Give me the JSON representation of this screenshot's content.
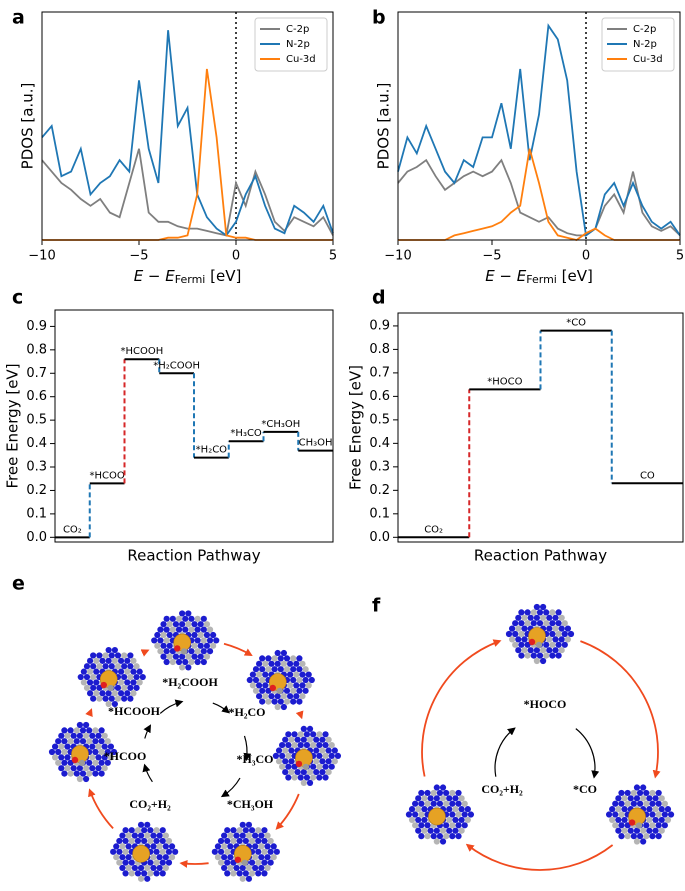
{
  "chart_data": [
    {
      "type": "line",
      "panel": "a",
      "ylabel": "PDOS [a.u.]",
      "xlabel": {
        "main": "E − E",
        "sub": "Fermi",
        "unit": " [eV]"
      },
      "x": [
        -10,
        -9.5,
        -9,
        -8.5,
        -8,
        -7.5,
        -7,
        -6.5,
        -6,
        -5.5,
        -5,
        -4.5,
        -4,
        -3.5,
        -3,
        -2.5,
        -2,
        -1.5,
        -1,
        -0.5,
        0,
        0.5,
        1,
        1.5,
        2,
        2.5,
        3,
        3.5,
        4,
        4.5,
        5
      ],
      "series": [
        {
          "name": "C-2p",
          "color": "#7f7f7f",
          "values": [
            35,
            30,
            25,
            22,
            18,
            15,
            18,
            12,
            10,
            25,
            40,
            12,
            8,
            8,
            6,
            5,
            5,
            4,
            3,
            2,
            25,
            15,
            30,
            20,
            8,
            4,
            10,
            8,
            6,
            10,
            2
          ]
        },
        {
          "name": "N-2p",
          "color": "#1f77b4",
          "values": [
            45,
            50,
            28,
            30,
            40,
            20,
            25,
            28,
            35,
            30,
            70,
            40,
            25,
            92,
            50,
            58,
            20,
            10,
            5,
            2,
            8,
            20,
            28,
            15,
            5,
            3,
            15,
            12,
            8,
            15,
            3
          ]
        },
        {
          "name": "Cu-3d",
          "color": "#ff7f0e",
          "values": [
            0,
            0,
            0,
            0,
            0,
            0,
            0,
            0,
            0,
            0,
            0,
            0,
            0,
            1,
            1,
            2,
            20,
            75,
            45,
            2,
            1,
            1,
            0,
            0,
            0,
            0,
            0,
            0,
            0,
            0,
            0
          ]
        }
      ],
      "xlim": [
        -10,
        5
      ],
      "ylim": [
        0,
        100
      ],
      "xticks": [
        {
          "value": -10,
          "label": "−10"
        },
        {
          "value": -5,
          "label": "−5"
        },
        0,
        5
      ],
      "vline": 0,
      "grid": false,
      "legend": "upper right"
    },
    {
      "type": "line",
      "panel": "b",
      "ylabel": "PDOS [a.u.]",
      "xlabel": {
        "main": "E − E",
        "sub": "Fermi",
        "unit": " [eV]"
      },
      "x": [
        -10,
        -9.5,
        -9,
        -8.5,
        -8,
        -7.5,
        -7,
        -6.5,
        -6,
        -5.5,
        -5,
        -4.5,
        -4,
        -3.5,
        -3,
        -2.5,
        -2,
        -1.5,
        -1,
        -0.5,
        0,
        0.5,
        1,
        1.5,
        2,
        2.5,
        3,
        3.5,
        4,
        4.5,
        5
      ],
      "series": [
        {
          "name": "C-2p",
          "color": "#7f7f7f",
          "values": [
            25,
            30,
            32,
            35,
            28,
            22,
            25,
            28,
            30,
            28,
            30,
            35,
            25,
            12,
            10,
            8,
            10,
            5,
            3,
            2,
            2,
            5,
            15,
            20,
            12,
            30,
            12,
            6,
            4,
            6,
            2
          ]
        },
        {
          "name": "N-2p",
          "color": "#1f77b4",
          "values": [
            30,
            45,
            38,
            50,
            40,
            30,
            25,
            35,
            32,
            45,
            45,
            60,
            40,
            75,
            35,
            55,
            94,
            88,
            70,
            30,
            2,
            5,
            20,
            25,
            15,
            25,
            15,
            8,
            5,
            8,
            2
          ]
        },
        {
          "name": "Cu-3d",
          "color": "#ff7f0e",
          "values": [
            0,
            0,
            0,
            0,
            0,
            0,
            2,
            3,
            4,
            5,
            6,
            8,
            12,
            15,
            40,
            25,
            8,
            2,
            1,
            0,
            3,
            5,
            2,
            0,
            0,
            0,
            0,
            0,
            0,
            0,
            0
          ]
        }
      ],
      "xlim": [
        -10,
        5
      ],
      "ylim": [
        0,
        100
      ],
      "xticks": [
        {
          "value": -10,
          "label": "−10"
        },
        {
          "value": -5,
          "label": "−5"
        },
        0,
        5
      ],
      "vline": 0,
      "grid": false,
      "legend": "upper right"
    },
    {
      "type": "step",
      "panel": "c",
      "ylabel": "Free Energy [eV]",
      "xlabel": "Reaction Pathway",
      "categories": [
        "CO₂",
        "*HCOO",
        "*HCOOH",
        "*H₂COOH",
        "*H₂CO",
        "*H₃CO",
        "*CH₃OH",
        "CH₃OH"
      ],
      "values": [
        0,
        0.23,
        0.76,
        0.7,
        0.34,
        0.41,
        0.45,
        0.37
      ],
      "connector_colors": [
        "#1f77b4",
        "#d62728",
        "#1f77b4",
        "#1f77b4",
        "#1f77b4",
        "#1f77b4",
        "#1f77b4"
      ],
      "ylim": [
        -0.02,
        0.97
      ],
      "yticks": [
        {
          "value": 0,
          "label": "0.0"
        },
        0.1,
        0.2,
        0.3,
        0.4,
        0.5,
        0.6,
        0.7,
        0.8,
        0.9
      ]
    },
    {
      "type": "step",
      "panel": "d",
      "ylabel": "Free Energy [eV]",
      "xlabel": "Reaction Pathway",
      "categories": [
        "CO₂",
        "*HOCO",
        "*CO",
        "CO"
      ],
      "values": [
        0,
        0.63,
        0.88,
        0.23
      ],
      "connector_colors": [
        "#d62728",
        "#1f77b4",
        "#1f77b4"
      ],
      "ylim": [
        -0.02,
        0.955
      ],
      "yticks": [
        {
          "value": 0,
          "label": "0.0"
        },
        0.1,
        0.2,
        0.3,
        0.4,
        0.5,
        0.6,
        0.7,
        0.8,
        0.9
      ]
    }
  ],
  "diagrams": [
    {
      "panel": "e",
      "labels": [
        "*H₂COOH",
        "*H₂CO",
        "*H₃CO",
        "*CH₃OH",
        "CO₂+H₂",
        "*HCOO",
        "*HCOOH"
      ]
    },
    {
      "panel": "f",
      "labels": [
        "*HOCO",
        "*CO",
        "CO₂+H₂"
      ]
    }
  ]
}
